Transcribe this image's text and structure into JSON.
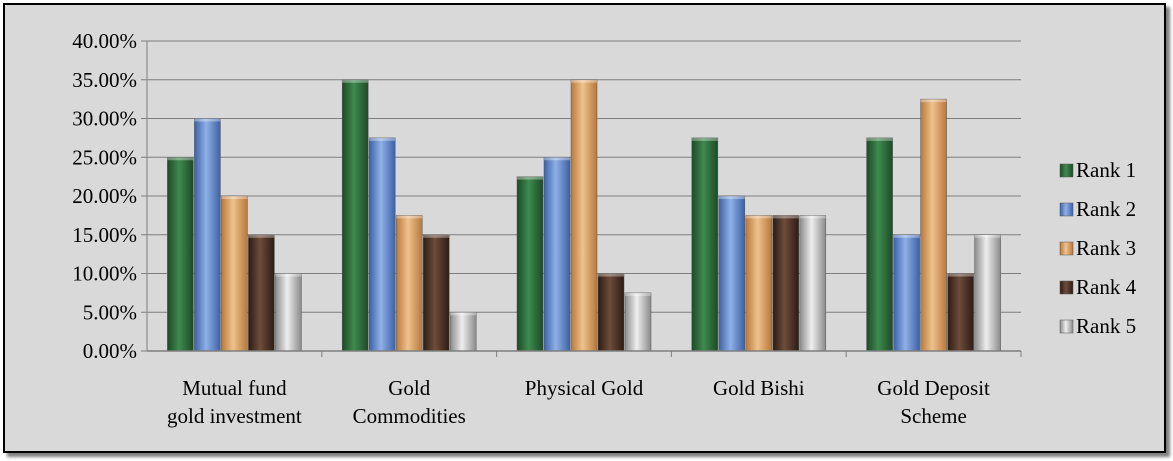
{
  "chart_data": {
    "type": "bar",
    "title": "",
    "xlabel": "",
    "ylabel": "",
    "categories": [
      [
        "Mutual fund",
        "gold investment"
      ],
      [
        "Gold",
        "Commodities"
      ],
      [
        "Physical Gold"
      ],
      [
        "Gold Bishi"
      ],
      [
        "Gold Deposit",
        "Scheme"
      ]
    ],
    "y_ticks": [
      "0.00%",
      "5.00%",
      "10.00%",
      "15.00%",
      "20.00%",
      "25.00%",
      "30.00%",
      "35.00%",
      "40.00%"
    ],
    "ylim": [
      0,
      40
    ],
    "grid": true,
    "legend_position": "right",
    "series": [
      {
        "name": "Rank 1",
        "color": "#2e6b3a",
        "values": [
          25.0,
          35.0,
          22.5,
          27.5,
          27.5
        ]
      },
      {
        "name": "Rank 2",
        "color": "#5b82c8",
        "values": [
          30.0,
          27.5,
          25.0,
          20.0,
          15.0
        ]
      },
      {
        "name": "Rank 3",
        "color": "#d79a5a",
        "values": [
          20.0,
          17.5,
          35.0,
          17.5,
          32.5
        ]
      },
      {
        "name": "Rank 4",
        "color": "#4a3124",
        "values": [
          15.0,
          15.0,
          10.0,
          17.5,
          10.0
        ]
      },
      {
        "name": "Rank 5",
        "color": "#c8c8c8",
        "values": [
          10.0,
          5.0,
          7.5,
          17.5,
          15.0
        ]
      }
    ]
  }
}
